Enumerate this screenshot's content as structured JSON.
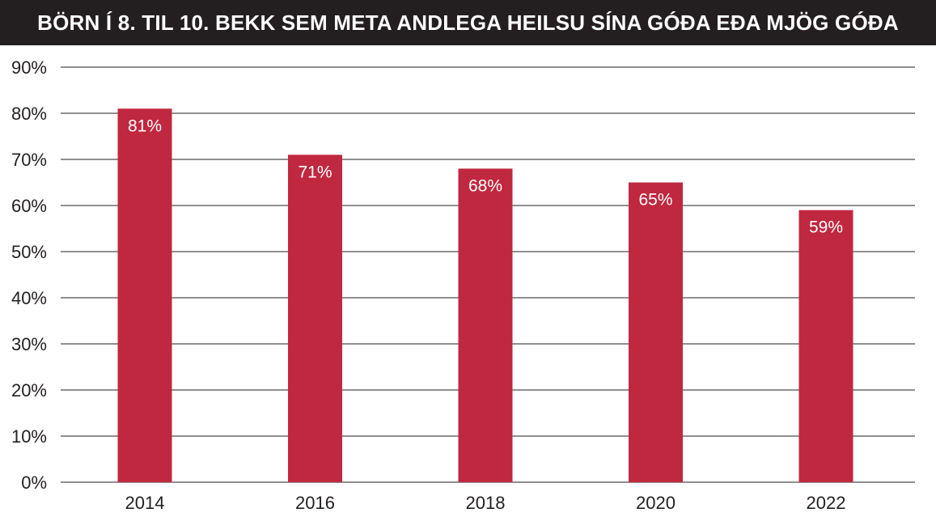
{
  "chart_data": {
    "type": "bar",
    "title": "BÖRN Í 8. TIL 10. BEKK SEM META ANDLEGA HEILSU SÍNA GÓÐA EÐA MJÖG GÓÐA",
    "categories": [
      "2014",
      "2016",
      "2018",
      "2020",
      "2022"
    ],
    "values": [
      81,
      71,
      68,
      65,
      59
    ],
    "data_labels": [
      "81%",
      "71%",
      "68%",
      "65%",
      "59%"
    ],
    "ylim": [
      0,
      90
    ],
    "yticks": [
      0,
      10,
      20,
      30,
      40,
      50,
      60,
      70,
      80,
      90
    ],
    "ytick_labels": [
      "0%",
      "10%",
      "20%",
      "30%",
      "40%",
      "50%",
      "60%",
      "70%",
      "80%",
      "90%"
    ],
    "xlabel": "",
    "ylabel": "",
    "grid": true,
    "legend": "none",
    "colors": {
      "bar": "#c0283f",
      "title_background": "#231f20",
      "title_text": "#ffffff",
      "grid": "#231f20",
      "text": "#231f20",
      "data_label": "#ffffff"
    }
  }
}
